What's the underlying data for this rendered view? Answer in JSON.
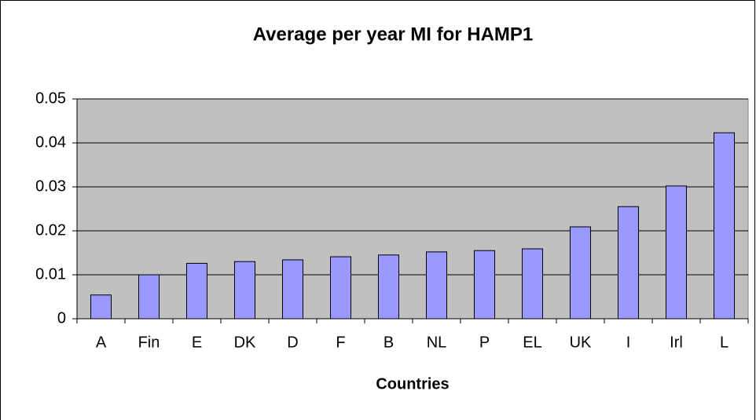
{
  "chart_data": {
    "type": "bar",
    "title": "Average per year MI for HAMP1",
    "x_label": "Countries",
    "categories": [
      "A",
      "Fin",
      "E",
      "DK",
      "D",
      "F",
      "B",
      "NL",
      "P",
      "EL",
      "UK",
      "I",
      "Irl",
      "L"
    ],
    "values": [
      0.0054,
      0.01,
      0.0126,
      0.013,
      0.0134,
      0.0141,
      0.0145,
      0.0152,
      0.0155,
      0.0159,
      0.0209,
      0.0255,
      0.0302,
      0.0423
    ],
    "color": "#9999ff",
    "ylim": [
      0,
      0.05
    ],
    "yticks": [
      0,
      0.01,
      0.02,
      0.03,
      0.04,
      0.05
    ],
    "grid": true
  }
}
